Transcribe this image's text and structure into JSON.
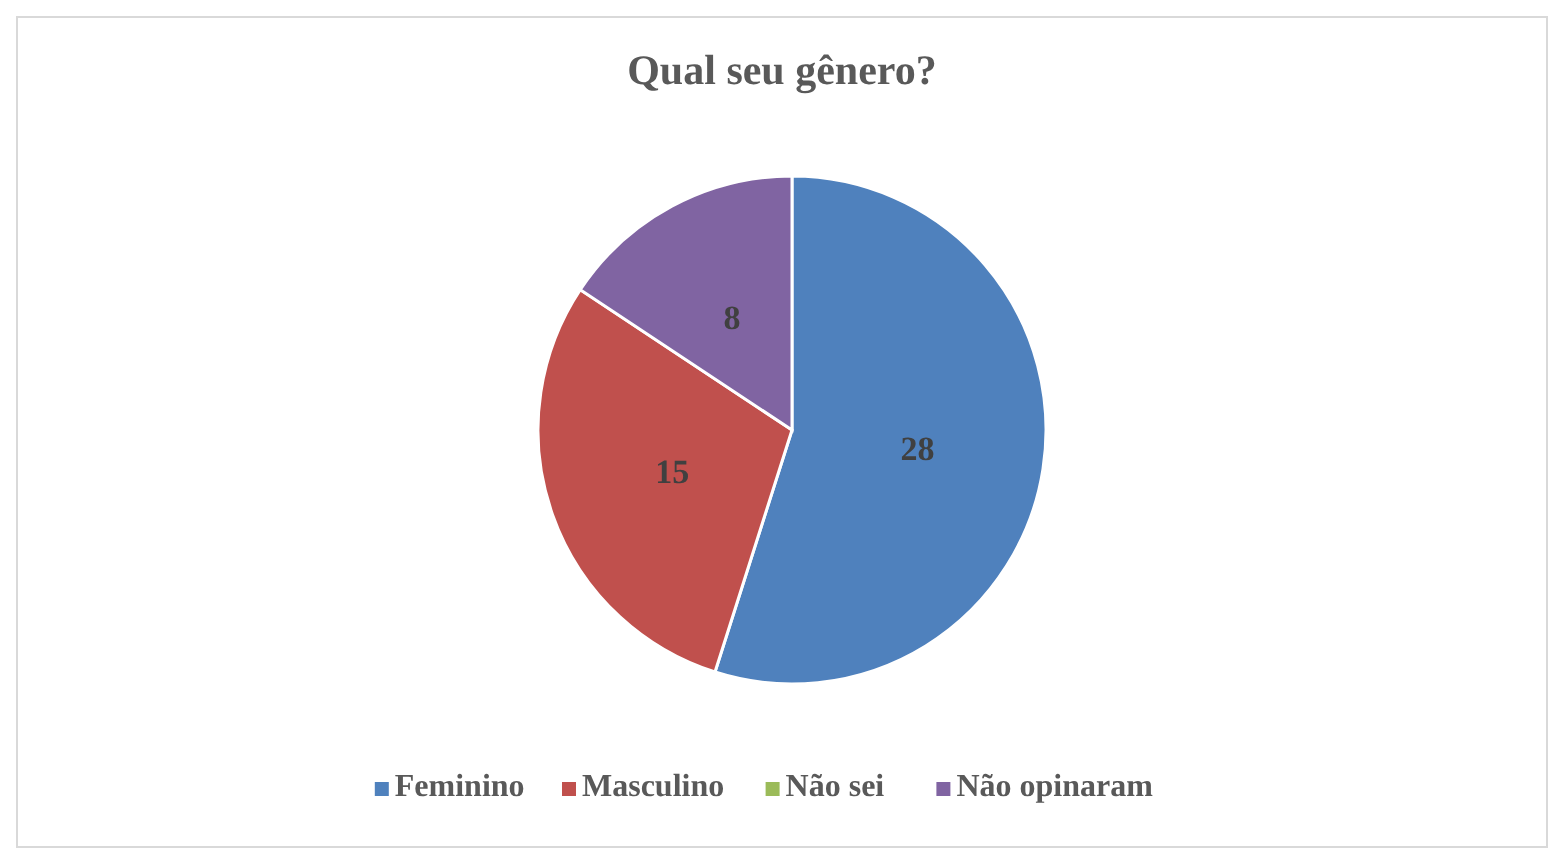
{
  "chart_data": {
    "type": "pie",
    "title": "Qual seu gênero?",
    "categories": [
      "Feminino",
      "Masculino",
      "Não sei",
      "Não opinaram"
    ],
    "values": [
      28,
      15,
      0,
      8
    ],
    "colors": [
      "#4f81bd",
      "#c0504d",
      "#9bbb59",
      "#8064a2"
    ],
    "data_labels": true,
    "legend": "bottom"
  }
}
